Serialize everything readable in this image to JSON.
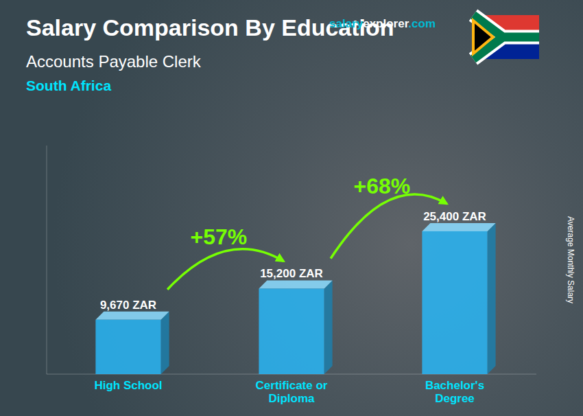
{
  "chart_data": {
    "type": "bar",
    "title": "Salary Comparison By Education",
    "subtitle": [
      "Accounts Payable Clerk",
      "South Africa"
    ],
    "y_label": "Average Monthly Salary",
    "categories": [
      "High School",
      "Certificate or\nDiploma",
      "Bachelor's\nDegree"
    ],
    "values": [
      9670,
      15200,
      25400
    ],
    "value_labels": [
      "9,670 ZAR",
      "15,200 ZAR",
      "25,400 ZAR"
    ],
    "annotations": [
      "+57%",
      "+68%"
    ],
    "watermark": [
      "salary",
      "explorer",
      ".com"
    ],
    "color": "#29b6f6",
    "ylim": [
      0,
      40640
    ],
    "data_labels": true,
    "tick_labels": "x",
    "grid": false
  }
}
